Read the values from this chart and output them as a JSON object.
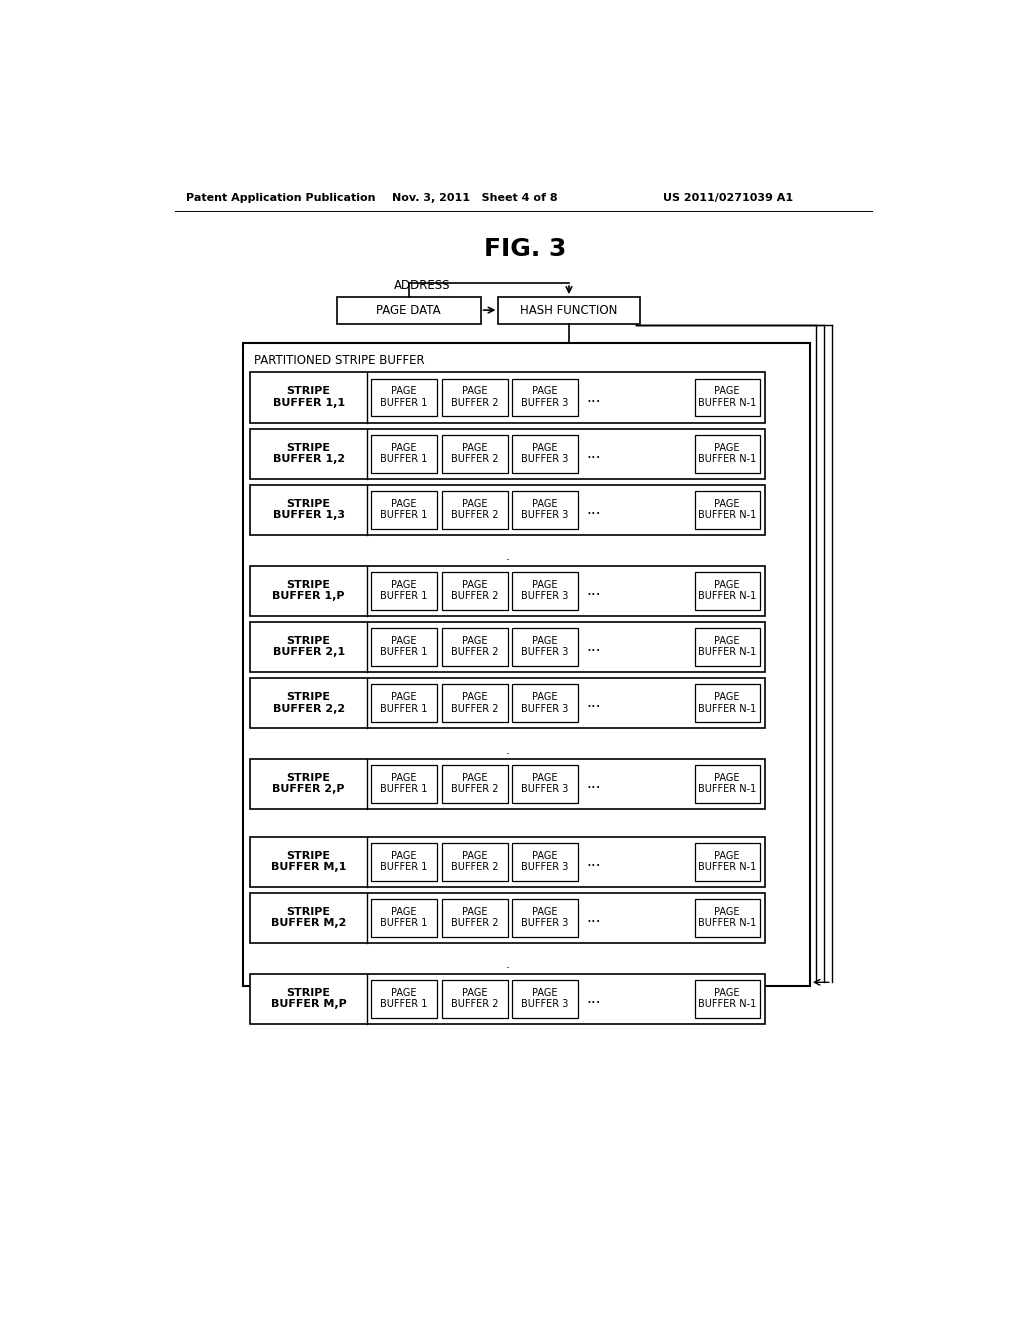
{
  "title": "FIG. 3",
  "header_left": "Patent Application Publication",
  "header_mid": "Nov. 3, 2011   Sheet 4 of 8",
  "header_right": "US 2011/0271039 A1",
  "bg_color": "#ffffff",
  "stripe_rows": [
    "STRIPE\nBUFFER 1,1",
    "STRIPE\nBUFFER 1,2",
    "STRIPE\nBUFFER 1,3",
    "STRIPE\nBUFFER 1,P",
    "STRIPE\nBUFFER 2,1",
    "STRIPE\nBUFFER 2,2",
    "STRIPE\nBUFFER 2,P",
    "STRIPE\nBUFFER M,1",
    "STRIPE\nBUFFER M,2",
    "STRIPE\nBUFFER M,P"
  ],
  "dots_after_rows": [
    2,
    5,
    8
  ],
  "big_gap_before_rows": [
    7
  ],
  "page_buf_labels": [
    "PAGE\nBUFFER 1",
    "PAGE\nBUFFER 2",
    "PAGE\nBUFFER 3",
    "PAGE\nBUFFER N-1"
  ]
}
